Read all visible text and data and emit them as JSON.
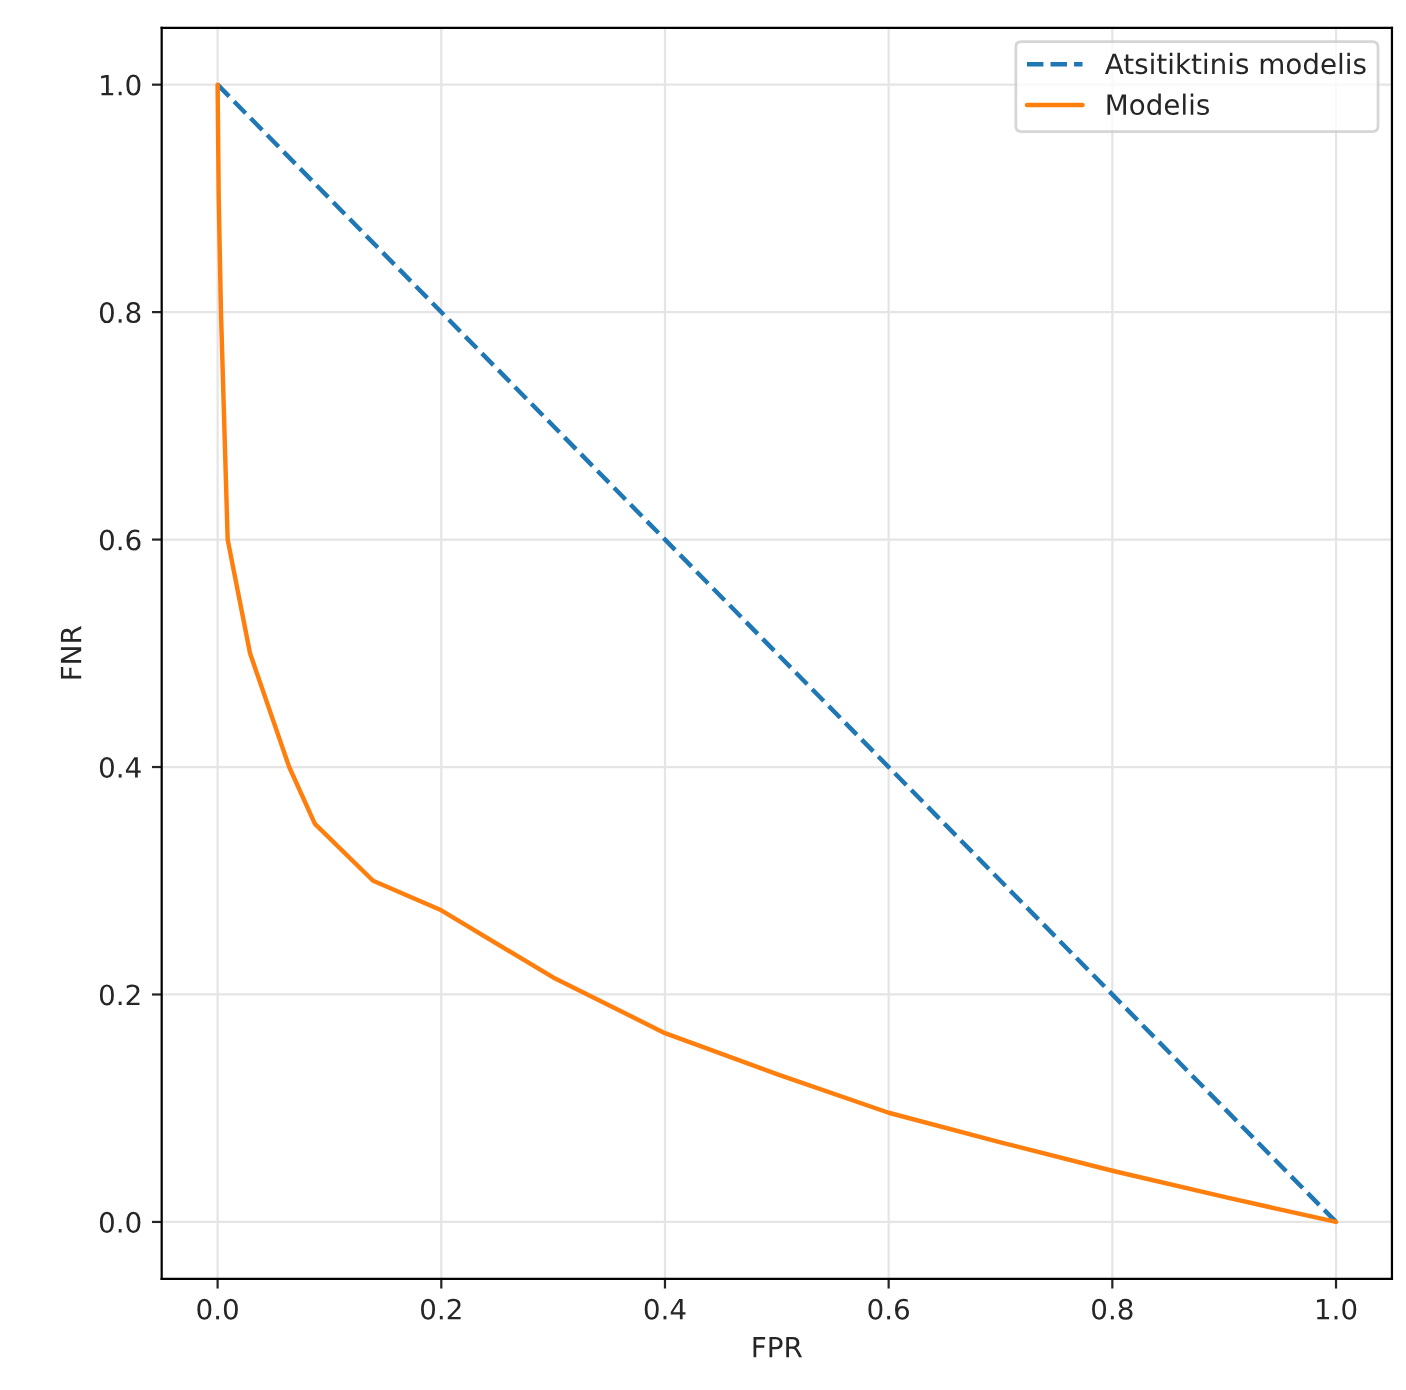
{
  "chart_data": {
    "type": "line",
    "xlabel": "FPR",
    "ylabel": "FNR",
    "series": [
      {
        "name": "Atsitiktinis modelis",
        "color": "#1f77b4",
        "line_style": "dashed",
        "x": [
          0,
          1
        ],
        "values": [
          1,
          0
        ]
      },
      {
        "name": "Modelis",
        "color": "#ff7f0e",
        "line_style": "solid",
        "x": [
          0,
          0.001,
          0.003,
          0.009,
          0.029,
          0.064,
          0.087,
          0.139,
          0.2,
          0.3,
          0.4,
          0.5,
          0.6,
          0.7,
          0.8,
          0.9,
          1.0
        ],
        "values": [
          1.0,
          0.9,
          0.8,
          0.6,
          0.5,
          0.4,
          0.35,
          0.3,
          0.274,
          0.215,
          0.166,
          0.13,
          0.096,
          0.07,
          0.045,
          0.022,
          0.0
        ]
      }
    ],
    "xlim": [
      -0.05,
      1.05
    ],
    "ylim": [
      -0.05,
      1.05
    ],
    "xticks": [
      {
        "value": 0,
        "label": "0.0"
      },
      0.2,
      0.4,
      0.6,
      0.8,
      {
        "value": 1,
        "label": "1.0"
      }
    ],
    "yticks": [
      {
        "value": 0,
        "label": "0.0"
      },
      0.2,
      0.4,
      0.6,
      0.8,
      {
        "value": 1,
        "label": "1.0"
      }
    ],
    "grid": true,
    "legend": "top right"
  }
}
